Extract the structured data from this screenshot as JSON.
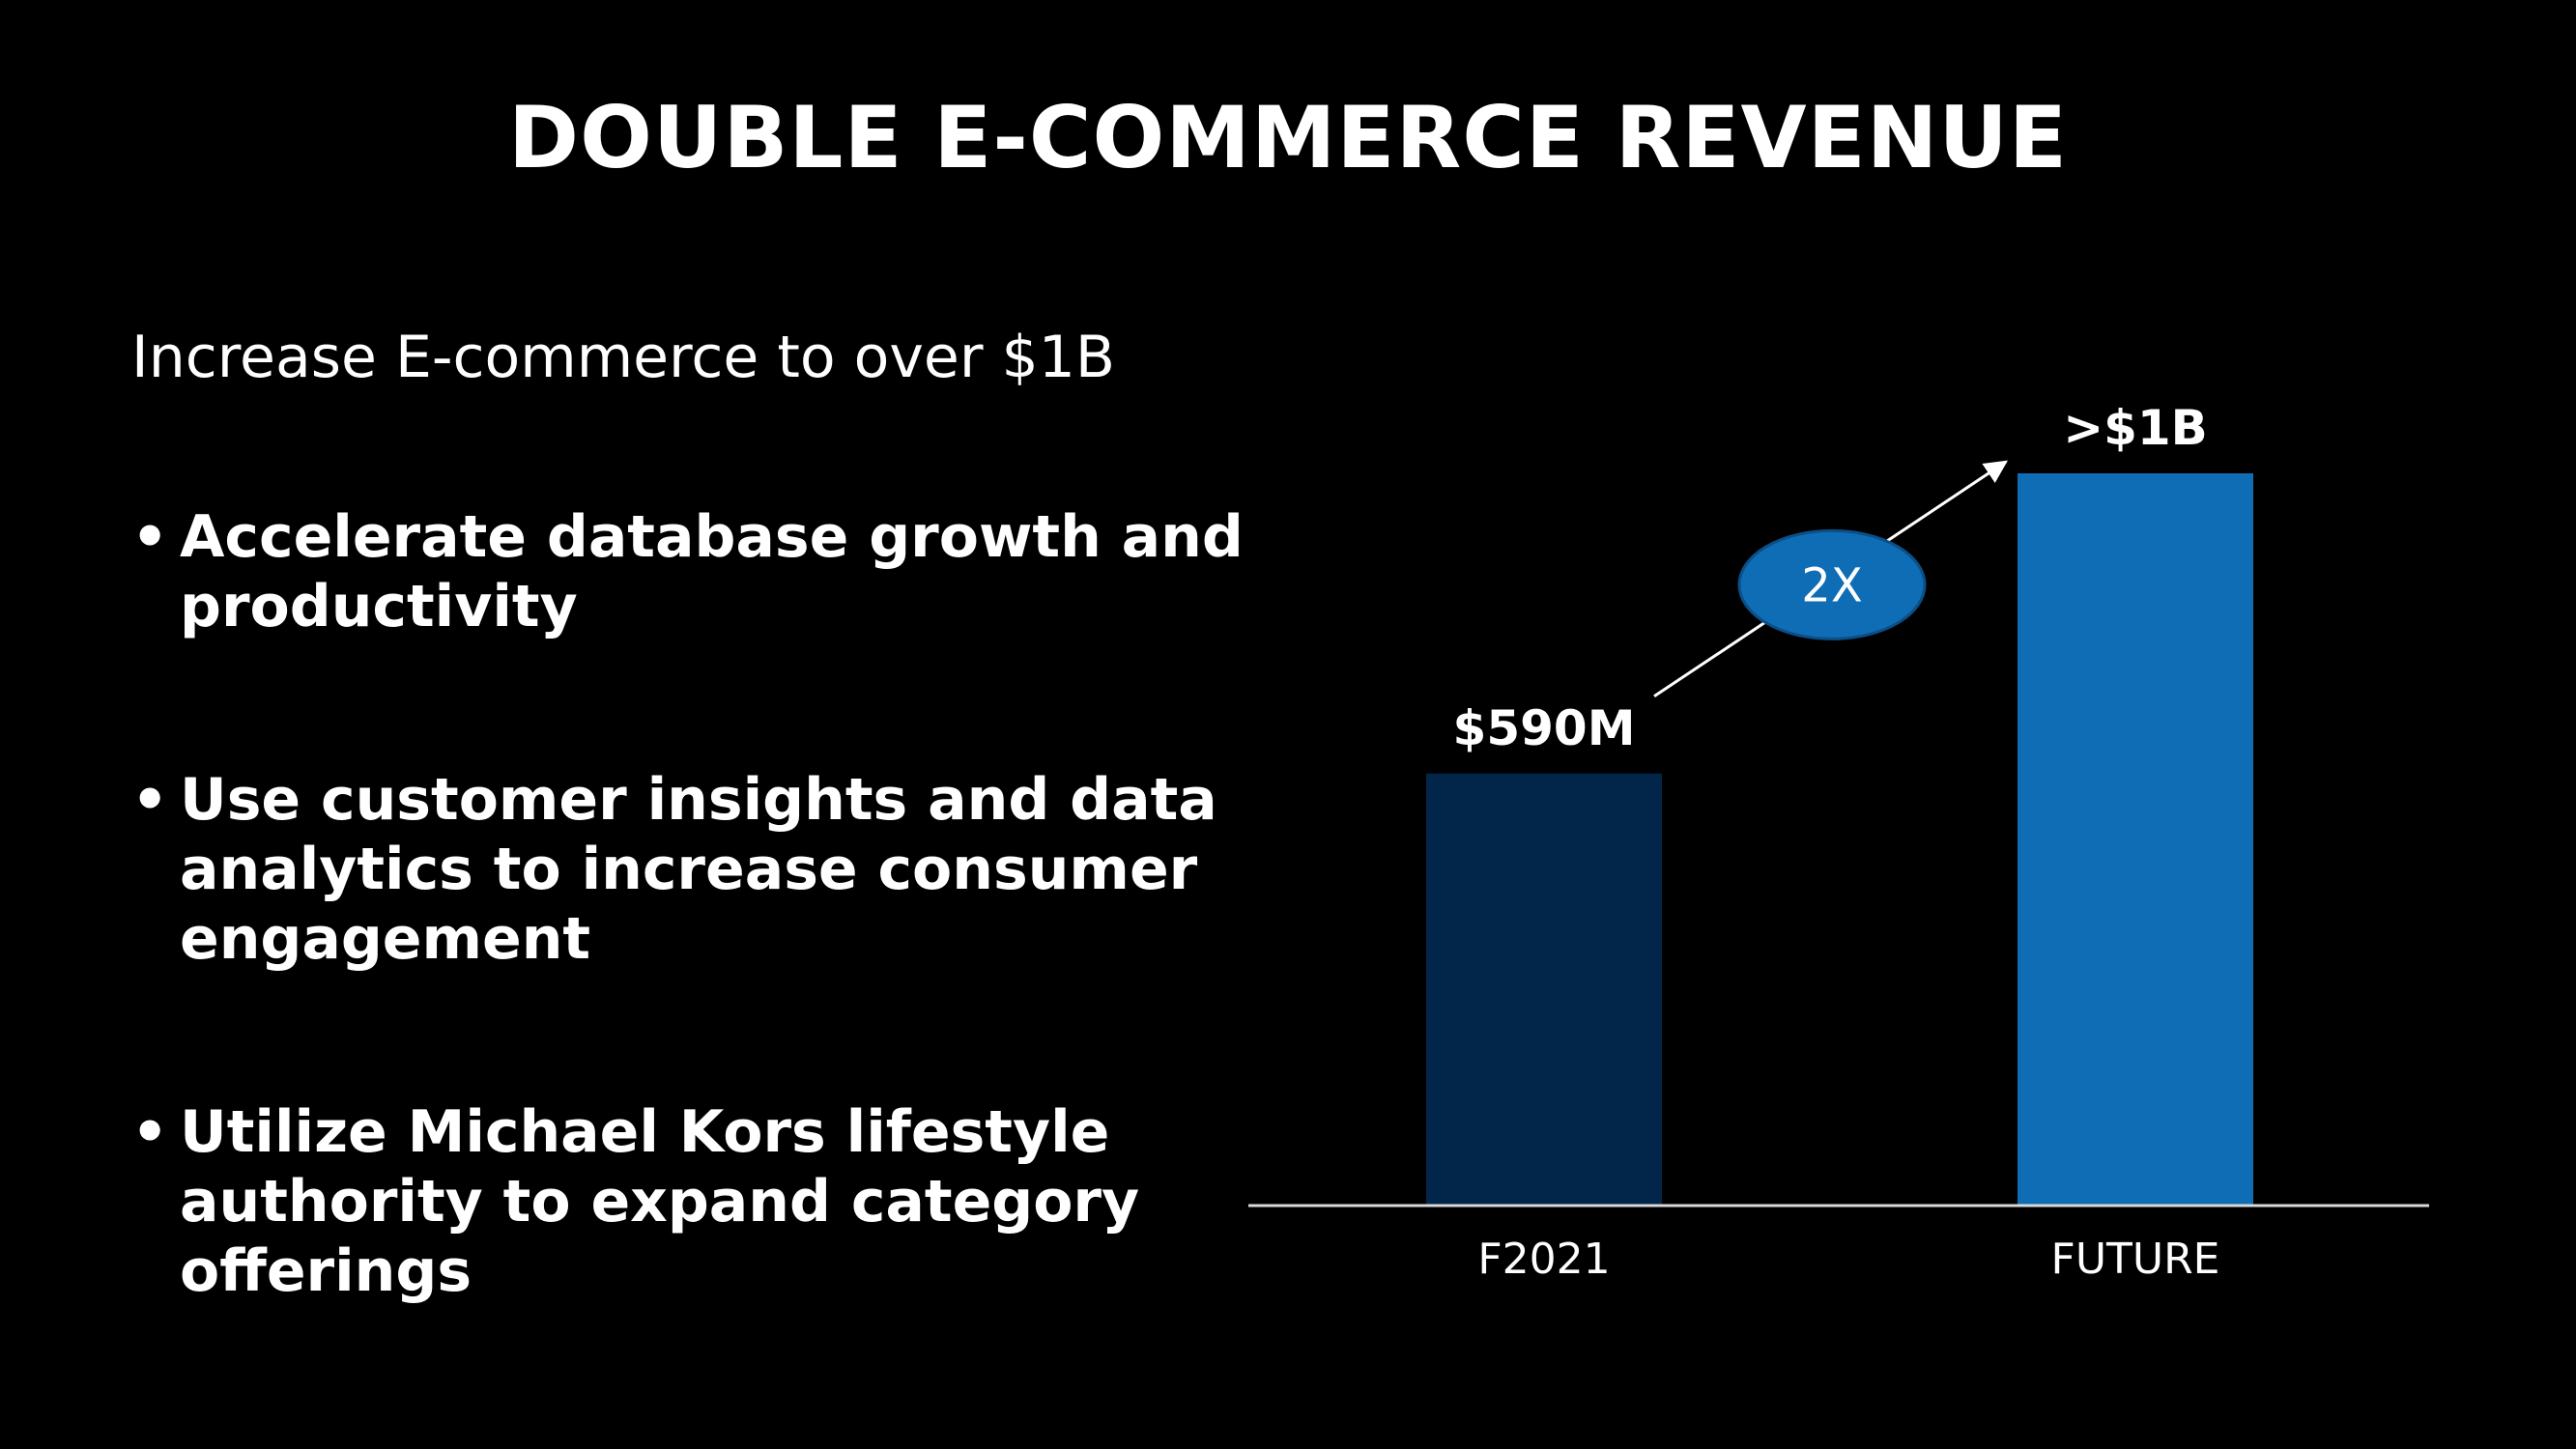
{
  "slide": {
    "title": "DOUBLE E-COMMERCE REVENUE",
    "subtitle": "Increase E-commerce to over $1B",
    "bullets": [
      "Accelerate database growth and productivity",
      "Use customer insights and data analytics to increase consumer engagement",
      "Utilize Michael Kors lifestyle authority to expand category offerings"
    ]
  },
  "colors": {
    "background": "#000000",
    "text": "#ffffff",
    "bar_f2021": "#02264a",
    "bar_future": "#0f6db5",
    "badge": "#0f6db5",
    "axis": "#d9d9d9"
  },
  "chart_data": {
    "type": "bar",
    "categories": [
      "F2021",
      "FUTURE"
    ],
    "values": [
      590,
      1000
    ],
    "value_unit": "$M",
    "data_labels": [
      "$590M",
      ">$1B"
    ],
    "annotation": "2X",
    "title": "",
    "xlabel": "",
    "ylabel": "",
    "ylim": [
      0,
      1000
    ],
    "grid": false,
    "legend": "none"
  }
}
